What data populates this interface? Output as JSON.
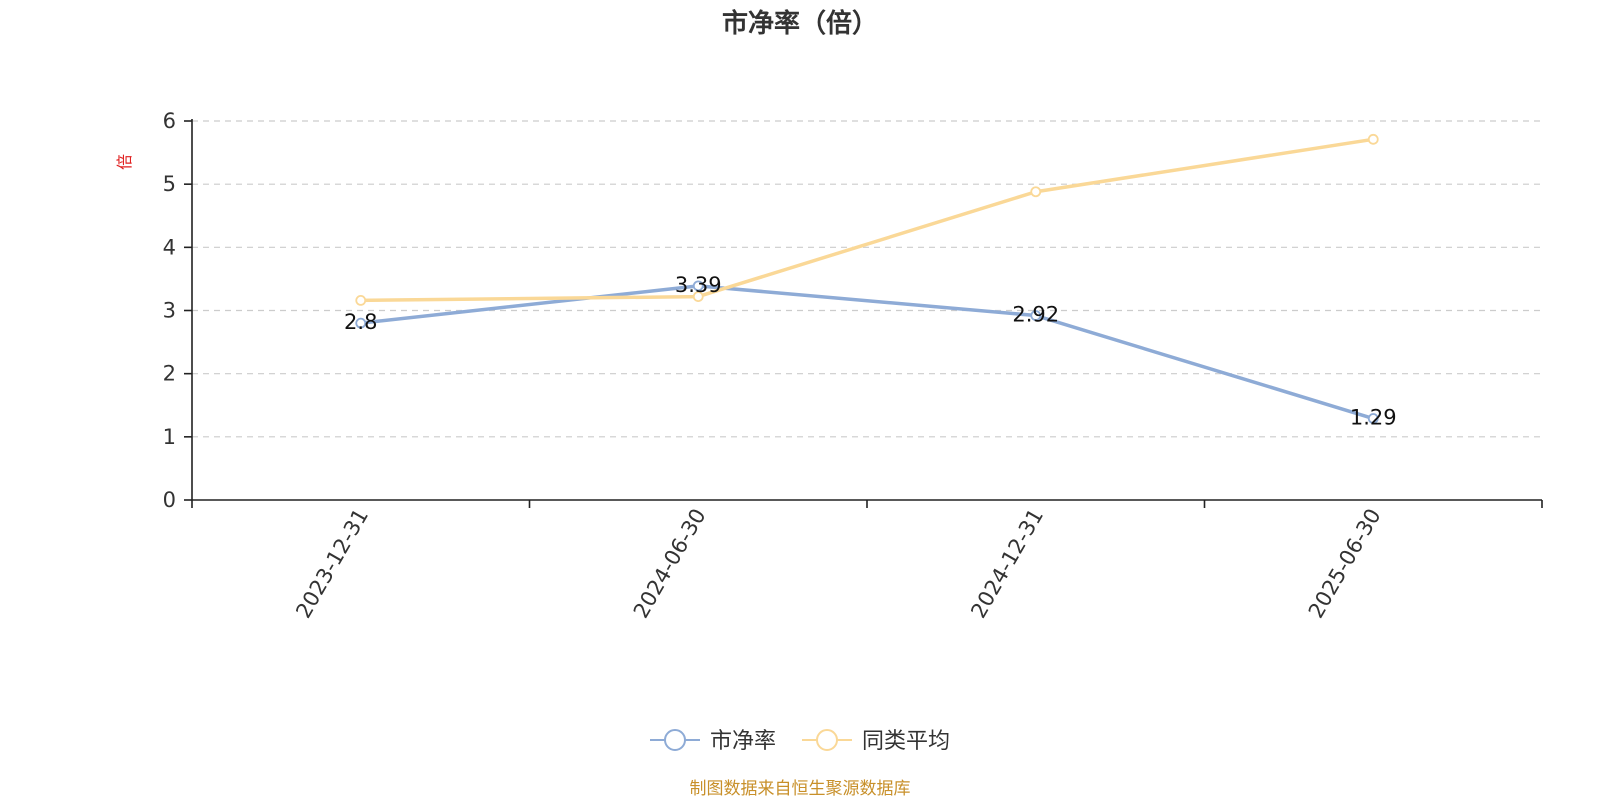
{
  "chart_data": {
    "type": "line",
    "title": "市净率（倍）",
    "ylabel": "倍",
    "xlabel": "",
    "categories": [
      "2023-12-31",
      "2024-06-30",
      "2024-12-31",
      "2025-06-30"
    ],
    "ylim": [
      0,
      6
    ],
    "yticks": [
      0,
      1,
      2,
      3,
      4,
      5,
      6
    ],
    "grid": true,
    "legend_position": "bottom-center",
    "series": [
      {
        "name": "市净率",
        "values": [
          2.8,
          3.39,
          2.92,
          1.29
        ],
        "labels": [
          "2.8",
          "3.39",
          "2.92",
          "1.29"
        ],
        "color": "#8eabd6"
      },
      {
        "name": "同类平均",
        "values": [
          3.16,
          3.22,
          4.88,
          5.71
        ],
        "color": "#fad897"
      }
    ]
  },
  "footer": {
    "source": "制图数据来自恒生聚源数据库"
  }
}
